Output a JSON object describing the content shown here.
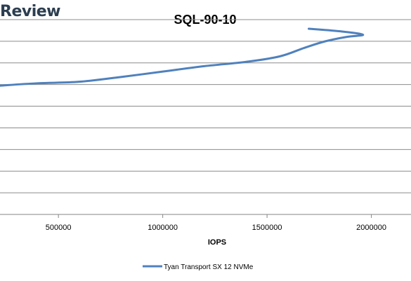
{
  "brand": "Review",
  "chart_data": {
    "type": "line",
    "title": "SQL-90-10",
    "xlabel": "IOPS",
    "ylabel": "",
    "xlim": [
      220000,
      2190000
    ],
    "ylim": [
      0,
      9
    ],
    "x_ticks": [
      500000,
      1000000,
      1500000,
      2000000
    ],
    "x_tick_labels": [
      "500000",
      "1000000",
      "1500000",
      "2000000"
    ],
    "y_gridlines": [
      0,
      1,
      2,
      3,
      4,
      5,
      6,
      7,
      8,
      9
    ],
    "grid": "horizontal",
    "legend_position": "bottom",
    "series": [
      {
        "name": "Tyan Transport SX 12 NVMe",
        "color": "#4f81bd",
        "x": [
          220000,
          400000,
          600000,
          800000,
          1000000,
          1200000,
          1400000,
          1560000,
          1680000,
          1780000,
          1880000,
          1960000,
          1860000,
          1700000
        ],
        "y": [
          5.95,
          6.06,
          6.13,
          6.35,
          6.6,
          6.85,
          7.05,
          7.3,
          7.7,
          8.0,
          8.2,
          8.3,
          8.45,
          8.58
        ]
      }
    ]
  }
}
